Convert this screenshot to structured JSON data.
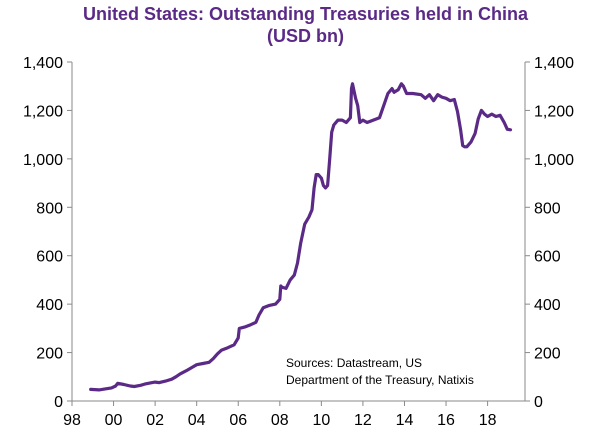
{
  "chart_data": {
    "type": "line",
    "title": "United States: Outstanding Treasuries held in China",
    "subtitle": "(USD bn)",
    "xlabel": "",
    "ylabel": "",
    "ylim": [
      0,
      1400
    ],
    "xlim": [
      1998.0,
      2019.8
    ],
    "x_ticks": [
      1998,
      2000,
      2002,
      2004,
      2006,
      2008,
      2010,
      2012,
      2014,
      2016,
      2018
    ],
    "x_tick_labels": [
      "98",
      "00",
      "02",
      "04",
      "06",
      "08",
      "10",
      "12",
      "14",
      "16",
      "18"
    ],
    "y_ticks": [
      0,
      200,
      400,
      600,
      800,
      1000,
      1200,
      1400
    ],
    "y_tick_labels": [
      "0",
      "200",
      "400",
      "600",
      "800",
      "1,000",
      "1,200",
      "1,400"
    ],
    "grid": false,
    "secondary_y_axis": true,
    "annotation": [
      "Sources: Datastream, US",
      "Department of the Treasury, Natixis"
    ],
    "series": [
      {
        "color": "#5b2a86",
        "points": [
          [
            1998.9,
            48
          ],
          [
            1999.3,
            46
          ],
          [
            1999.6,
            50
          ],
          [
            1999.9,
            54
          ],
          [
            2000.1,
            62
          ],
          [
            2000.2,
            73
          ],
          [
            2000.5,
            68
          ],
          [
            2000.8,
            62
          ],
          [
            2001.0,
            60
          ],
          [
            2001.3,
            65
          ],
          [
            2001.5,
            70
          ],
          [
            2001.8,
            75
          ],
          [
            2002.0,
            78
          ],
          [
            2002.2,
            76
          ],
          [
            2002.5,
            82
          ],
          [
            2002.8,
            90
          ],
          [
            2003.0,
            100
          ],
          [
            2003.2,
            112
          ],
          [
            2003.5,
            125
          ],
          [
            2003.8,
            140
          ],
          [
            2004.0,
            150
          ],
          [
            2004.3,
            155
          ],
          [
            2004.6,
            160
          ],
          [
            2004.8,
            175
          ],
          [
            2005.0,
            195
          ],
          [
            2005.2,
            210
          ],
          [
            2005.5,
            220
          ],
          [
            2005.8,
            232
          ],
          [
            2006.0,
            260
          ],
          [
            2006.05,
            300
          ],
          [
            2006.3,
            305
          ],
          [
            2006.6,
            315
          ],
          [
            2006.85,
            325
          ],
          [
            2007.0,
            355
          ],
          [
            2007.2,
            385
          ],
          [
            2007.5,
            395
          ],
          [
            2007.8,
            400
          ],
          [
            2008.0,
            420
          ],
          [
            2008.05,
            475
          ],
          [
            2008.1,
            470
          ],
          [
            2008.3,
            465
          ],
          [
            2008.5,
            500
          ],
          [
            2008.7,
            520
          ],
          [
            2008.85,
            570
          ],
          [
            2009.0,
            650
          ],
          [
            2009.2,
            730
          ],
          [
            2009.4,
            760
          ],
          [
            2009.55,
            790
          ],
          [
            2009.65,
            880
          ],
          [
            2009.75,
            935
          ],
          [
            2009.85,
            935
          ],
          [
            2010.0,
            920
          ],
          [
            2010.1,
            890
          ],
          [
            2010.2,
            880
          ],
          [
            2010.3,
            890
          ],
          [
            2010.4,
            1000
          ],
          [
            2010.5,
            1110
          ],
          [
            2010.6,
            1140
          ],
          [
            2010.8,
            1160
          ],
          [
            2011.0,
            1160
          ],
          [
            2011.2,
            1150
          ],
          [
            2011.4,
            1170
          ],
          [
            2011.45,
            1290
          ],
          [
            2011.5,
            1310
          ],
          [
            2011.65,
            1250
          ],
          [
            2011.75,
            1220
          ],
          [
            2011.85,
            1150
          ],
          [
            2012.0,
            1160
          ],
          [
            2012.2,
            1150
          ],
          [
            2012.5,
            1160
          ],
          [
            2012.8,
            1170
          ],
          [
            2013.0,
            1220
          ],
          [
            2013.2,
            1270
          ],
          [
            2013.4,
            1290
          ],
          [
            2013.5,
            1275
          ],
          [
            2013.7,
            1285
          ],
          [
            2013.85,
            1310
          ],
          [
            2013.95,
            1300
          ],
          [
            2014.1,
            1270
          ],
          [
            2014.4,
            1270
          ],
          [
            2014.8,
            1265
          ],
          [
            2015.0,
            1250
          ],
          [
            2015.2,
            1265
          ],
          [
            2015.4,
            1240
          ],
          [
            2015.6,
            1265
          ],
          [
            2015.8,
            1255
          ],
          [
            2016.0,
            1250
          ],
          [
            2016.2,
            1240
          ],
          [
            2016.4,
            1245
          ],
          [
            2016.55,
            1195
          ],
          [
            2016.7,
            1120
          ],
          [
            2016.8,
            1055
          ],
          [
            2016.9,
            1050
          ],
          [
            2017.0,
            1050
          ],
          [
            2017.2,
            1070
          ],
          [
            2017.4,
            1105
          ],
          [
            2017.55,
            1165
          ],
          [
            2017.7,
            1200
          ],
          [
            2017.85,
            1185
          ],
          [
            2018.0,
            1175
          ],
          [
            2018.2,
            1185
          ],
          [
            2018.4,
            1175
          ],
          [
            2018.6,
            1180
          ],
          [
            2018.8,
            1150
          ],
          [
            2018.95,
            1122
          ],
          [
            2019.1,
            1120
          ]
        ]
      }
    ]
  }
}
